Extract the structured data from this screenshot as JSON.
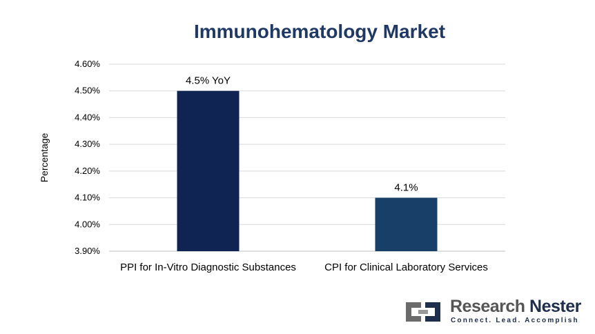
{
  "chart_data": {
    "type": "bar",
    "title": "Immunohematology Market",
    "ylabel": "Percentage",
    "xlabel": "",
    "categories": [
      "PPI for In-Vitro Diagnostic Substances",
      "CPI for Clinical Laboratory Services"
    ],
    "values": [
      4.5,
      4.1
    ],
    "data_labels": [
      "4.5% YoY",
      "4.1%"
    ],
    "bar_colors": [
      "#0f2453",
      "#173f67"
    ],
    "ylim": [
      3.9,
      4.6
    ],
    "yticks": [
      "3.90%",
      "4.00%",
      "4.10%",
      "4.20%",
      "4.30%",
      "4.40%",
      "4.50%",
      "4.60%"
    ],
    "grid": true,
    "legend": "none"
  },
  "logo": {
    "word1": "Research",
    "word2": "Nester",
    "tagline": "Connect. Lead. Accomplish"
  }
}
